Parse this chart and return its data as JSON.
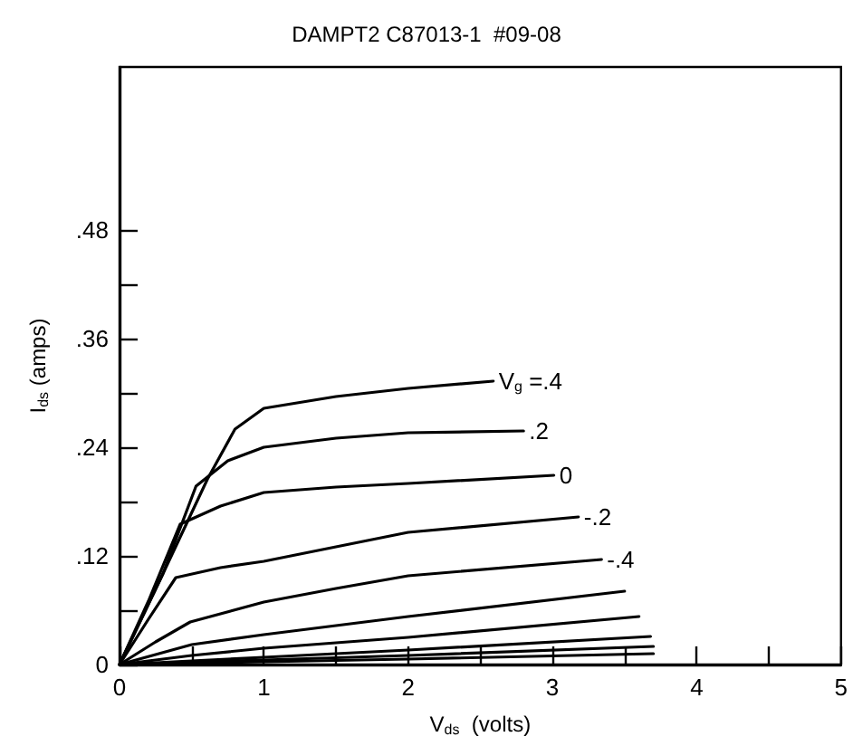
{
  "chart_data": {
    "type": "line",
    "title": "DAMPT2 C87013-1  #09-08",
    "xlabel": "V$_{ds}$  (volts)",
    "ylabel": "I$_{ds}$ (amps)",
    "xlim": [
      0,
      5
    ],
    "ylim": [
      0,
      0.66
    ],
    "xticks": [
      0,
      {
        "value": 0.5,
        "label": null
      },
      1,
      {
        "value": 1.5,
        "label": null
      },
      2,
      {
        "value": 2.5,
        "label": null
      },
      3,
      {
        "value": 3.5,
        "label": null
      },
      4,
      {
        "value": 4.5,
        "label": null
      },
      5
    ],
    "yticks": [
      0,
      {
        "value": 0.06,
        "label": null
      },
      {
        "value": 0.12,
        "label": ".12"
      },
      {
        "value": 0.18,
        "label": null
      },
      {
        "value": 0.24,
        "label": ".24"
      },
      {
        "value": 0.3,
        "label": null
      },
      {
        "value": 0.36,
        "label": ".36"
      },
      {
        "value": 0.42,
        "label": null
      },
      {
        "value": 0.48,
        "label": ".48"
      }
    ],
    "grid": false,
    "legend": false,
    "marker": "none",
    "line_style": "solid",
    "series": [
      {
        "name": "V$_{g}$ =.4",
        "color": "#000000",
        "x": [
          0,
          0.3,
          0.61,
          0.8,
          1,
          1.5,
          2,
          2.59
        ],
        "values": [
          0,
          0.1,
          0.205,
          0.26,
          0.283,
          0.296,
          0.305,
          0.313
        ]
      },
      {
        "name": ".2",
        "color": "#000000",
        "x": [
          0,
          0.3,
          0.53,
          0.75,
          1,
          1.5,
          2,
          2.8
        ],
        "values": [
          0,
          0.1,
          0.197,
          0.225,
          0.24,
          0.25,
          0.256,
          0.258
        ]
      },
      {
        "name": "0",
        "color": "#000000",
        "x": [
          0,
          0.2,
          0.42,
          0.7,
          1,
          1.5,
          2,
          3.01
        ],
        "values": [
          0,
          0.07,
          0.155,
          0.175,
          0.19,
          0.196,
          0.2,
          0.209
        ]
      },
      {
        "name": "-.2",
        "color": "#000000",
        "x": [
          0,
          0.2,
          0.39,
          0.7,
          1,
          1.5,
          2,
          3.18
        ],
        "values": [
          0,
          0.05,
          0.096,
          0.107,
          0.114,
          0.13,
          0.146,
          0.163
        ]
      },
      {
        "name": "-.4",
        "color": "#000000",
        "x": [
          0,
          0.25,
          0.49,
          1,
          1.5,
          2,
          3.34
        ],
        "values": [
          0,
          0.025,
          0.047,
          0.069,
          0.084,
          0.098,
          0.116
        ]
      },
      {
        "color": "#000000",
        "x": [
          0,
          0.5,
          1,
          2,
          3.5
        ],
        "values": [
          0,
          0.022,
          0.033,
          0.053,
          0.081
        ]
      },
      {
        "color": "#000000",
        "x": [
          0,
          0.5,
          1,
          2,
          3.6
        ],
        "values": [
          0,
          0.01,
          0.018,
          0.03,
          0.053
        ]
      },
      {
        "color": "#000000",
        "x": [
          0,
          1,
          2,
          3.68
        ],
        "values": [
          0,
          0.008,
          0.016,
          0.031
        ]
      },
      {
        "color": "#000000",
        "x": [
          0,
          1,
          2,
          3.7
        ],
        "values": [
          0,
          0.005,
          0.01,
          0.02
        ]
      },
      {
        "color": "#000000",
        "x": [
          0,
          1,
          2,
          3.7
        ],
        "values": [
          0,
          0.003,
          0.006,
          0.012
        ]
      }
    ]
  }
}
